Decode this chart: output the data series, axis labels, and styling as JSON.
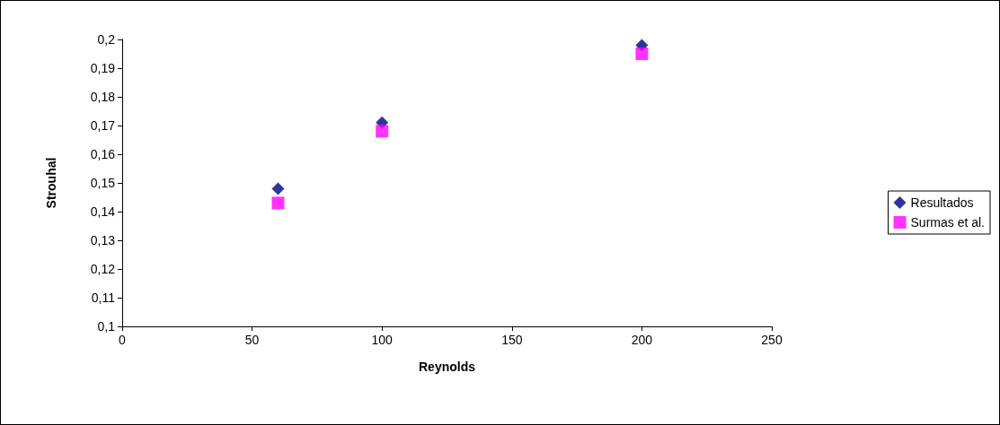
{
  "chart_data": {
    "type": "scatter",
    "xlabel": "Reynolds",
    "ylabel": "Strouhal",
    "x": [
      60,
      100,
      200
    ],
    "series": [
      {
        "name": "Resultados",
        "color": "#000080",
        "marker": "diamond",
        "values": [
          0.148,
          0.171,
          0.198
        ]
      },
      {
        "name": "Surmas et al.",
        "color": "#ff00ff",
        "marker": "square",
        "values": [
          0.143,
          0.168,
          0.195
        ]
      }
    ],
    "xlim": [
      0,
      250
    ],
    "xticks": [
      0,
      50,
      100,
      150,
      200,
      250
    ],
    "ylim": [
      0.1,
      0.2
    ],
    "yticks": [
      {
        "value": 0.1,
        "label": "0,1"
      },
      {
        "value": 0.11,
        "label": "0,11"
      },
      {
        "value": 0.12,
        "label": "0,12"
      },
      {
        "value": 0.13,
        "label": "0,13"
      },
      {
        "value": 0.14,
        "label": "0,14"
      },
      {
        "value": 0.15,
        "label": "0,15"
      },
      {
        "value": 0.16,
        "label": "0,16"
      },
      {
        "value": 0.17,
        "label": "0,17"
      },
      {
        "value": 0.18,
        "label": "0,18"
      },
      {
        "value": 0.19,
        "label": "0,19"
      },
      {
        "value": 0.2,
        "label": "0,2"
      }
    ],
    "grid": false,
    "legend": "right"
  }
}
